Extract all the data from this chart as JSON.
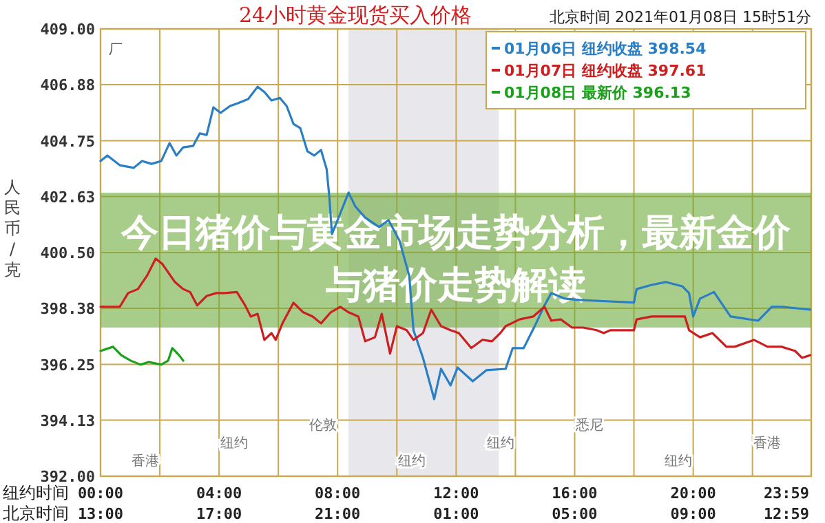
{
  "chart_data": {
    "type": "line",
    "title": "24小时黄金现货买入价格",
    "subtitle": "今日猪价与黄金市场走势分析，最新金价与猪价走势解读",
    "xlabel": "纽约时间",
    "ylabel": "人民币/克",
    "annotations": [
      "北京时间 2021年01月08日 15时51分",
      "厂",
      "北京时间",
      "13:00",
      "17:00",
      "21:00",
      "01:00",
      "05:00",
      "09:00",
      "12:59",
      "香港",
      "纽约",
      "伦敦",
      "纽约",
      "纽约",
      "悉尼",
      "纽约",
      "香港"
    ],
    "xlim": [
      0,
      23.983
    ],
    "ylim": [
      392,
      409
    ],
    "xticks": [
      {
        "value": 0,
        "label": "00:00"
      },
      {
        "value": 2,
        "label": null
      },
      {
        "value": 4,
        "label": "04:00"
      },
      {
        "value": 6,
        "label": null
      },
      {
        "value": 8,
        "label": "08:00"
      },
      {
        "value": 10,
        "label": null
      },
      {
        "value": 12,
        "label": "12:00"
      },
      {
        "value": 14,
        "label": null
      },
      {
        "value": 16,
        "label": "16:00"
      },
      {
        "value": 18,
        "label": null
      },
      {
        "value": 20,
        "label": "20:00"
      },
      {
        "value": 22,
        "label": null
      },
      {
        "value": 23.983,
        "label": "23:59"
      }
    ],
    "yticks": [
      {
        "value": 392,
        "label": "392.00"
      },
      {
        "value": 394.13,
        "label": "394.13"
      },
      {
        "value": 396.25,
        "label": "396.25"
      },
      {
        "value": 398.38,
        "label": "398.38"
      },
      {
        "value": 400.5,
        "label": "400.50"
      },
      {
        "value": 402.63,
        "label": "402.63"
      },
      {
        "value": 404.75,
        "label": "404.75"
      },
      {
        "value": 406.88,
        "label": "406.88"
      },
      {
        "value": 409,
        "label": "409.00"
      }
    ],
    "grid": true,
    "legend": "top right",
    "marker": "none",
    "line_style": "solid",
    "bands": [
      {
        "axis": "x",
        "from": 8.37,
        "to": 13.44,
        "color": "#e8e8ec"
      }
    ],
    "series": [
      {
        "name": "01月06日 纽约收盘 398.54",
        "color": "#2a7fc4",
        "x": [
          0,
          0.23,
          0.65,
          1.12,
          1.4,
          1.72,
          2.05,
          2.33,
          2.56,
          2.79,
          3.12,
          3.35,
          3.58,
          3.81,
          4.05,
          4.37,
          4.65,
          4.98,
          5.3,
          5.53,
          5.77,
          6.05,
          6.28,
          6.51,
          6.74,
          6.98,
          7.21,
          7.44,
          7.63,
          7.72,
          7.81,
          8.37,
          8.6,
          8.93,
          9.4,
          9.72,
          10.09,
          10.42,
          10.56,
          10.88,
          11.26,
          11.49,
          11.81,
          12.05,
          12.56,
          13.02,
          13.67,
          13.91,
          14.28,
          14.51,
          14.65,
          14.98,
          15.21,
          15.67,
          16.14,
          17.07,
          18.0,
          18.09,
          18.6,
          19.07,
          19.63,
          19.86,
          20.0,
          20.23,
          20.7,
          21.26,
          22.19,
          22.65,
          22.98,
          23.95
        ],
        "values": [
          403.98,
          404.19,
          403.82,
          403.72,
          403.98,
          403.87,
          403.98,
          404.66,
          404.19,
          404.5,
          404.55,
          405.03,
          404.97,
          406.02,
          405.81,
          406.07,
          406.18,
          406.33,
          406.8,
          406.6,
          406.28,
          406.38,
          406.07,
          405.39,
          405.23,
          404.35,
          404.19,
          404.4,
          403.67,
          402.62,
          401.2,
          402.78,
          402.25,
          401.83,
          401.47,
          401.73,
          400.95,
          399.6,
          397.55,
          396.5,
          394.93,
          396.08,
          395.45,
          396.13,
          395.61,
          396.03,
          396.08,
          396.87,
          396.87,
          397.39,
          397.7,
          398.49,
          398.96,
          398.75,
          398.7,
          398.65,
          398.6,
          399.11,
          399.27,
          399.38,
          399.22,
          398.96,
          398.07,
          398.75,
          399.0,
          398.07,
          397.91,
          398.44,
          398.44,
          398.33
        ]
      },
      {
        "name": "01月07日 纽约收盘 397.61",
        "color": "#cc1f1f",
        "x": [
          0,
          0.65,
          0.93,
          1.26,
          1.58,
          1.86,
          2.09,
          2.51,
          2.79,
          3.02,
          3.26,
          3.58,
          3.91,
          4.19,
          4.6,
          4.88,
          5.07,
          5.3,
          5.53,
          5.77,
          5.91,
          6.14,
          6.51,
          6.84,
          7.16,
          7.44,
          7.77,
          8.09,
          8.37,
          8.7,
          8.93,
          9.26,
          9.49,
          9.77,
          10.0,
          10.33,
          10.56,
          10.88,
          11.16,
          11.49,
          11.81,
          12.09,
          12.51,
          12.88,
          13.21,
          13.49,
          13.67,
          14.14,
          14.6,
          14.98,
          15.21,
          15.53,
          15.91,
          16.28,
          16.74,
          16.98,
          17.21,
          18.0,
          18.09,
          18.6,
          19.07,
          19.72,
          19.86,
          20.23,
          20.65,
          21.12,
          21.4,
          22.05,
          22.51,
          22.98,
          23.44,
          23.67,
          23.95
        ],
        "values": [
          398.44,
          398.44,
          398.96,
          399.11,
          399.64,
          400.27,
          400.06,
          399.38,
          399.11,
          399.0,
          398.49,
          398.85,
          398.96,
          398.96,
          399.0,
          398.49,
          398.07,
          398.17,
          397.18,
          397.44,
          397.18,
          397.81,
          398.59,
          398.23,
          398.07,
          397.81,
          398.23,
          398.44,
          398.23,
          398.07,
          397.13,
          397.28,
          398.17,
          396.66,
          397.7,
          397.55,
          397.18,
          397.44,
          398.33,
          397.7,
          397.55,
          397.44,
          396.87,
          397.18,
          397.13,
          397.44,
          397.7,
          397.96,
          398.07,
          398.44,
          397.91,
          397.96,
          397.65,
          397.65,
          397.55,
          397.44,
          397.55,
          397.55,
          397.96,
          398.07,
          398.07,
          398.07,
          397.55,
          397.28,
          397.44,
          396.92,
          396.92,
          397.18,
          396.92,
          396.92,
          396.76,
          396.5,
          396.6
        ]
      },
      {
        "name": "01月08日 最新价 396.13",
        "color": "#1aa01a",
        "x": [
          0,
          0.42,
          0.7,
          1.02,
          1.35,
          1.63,
          2.05,
          2.28,
          2.42,
          2.65,
          2.79
        ],
        "values": [
          396.76,
          396.92,
          396.6,
          396.39,
          396.24,
          396.34,
          396.24,
          396.39,
          396.87,
          396.6,
          396.39
        ]
      }
    ]
  }
}
